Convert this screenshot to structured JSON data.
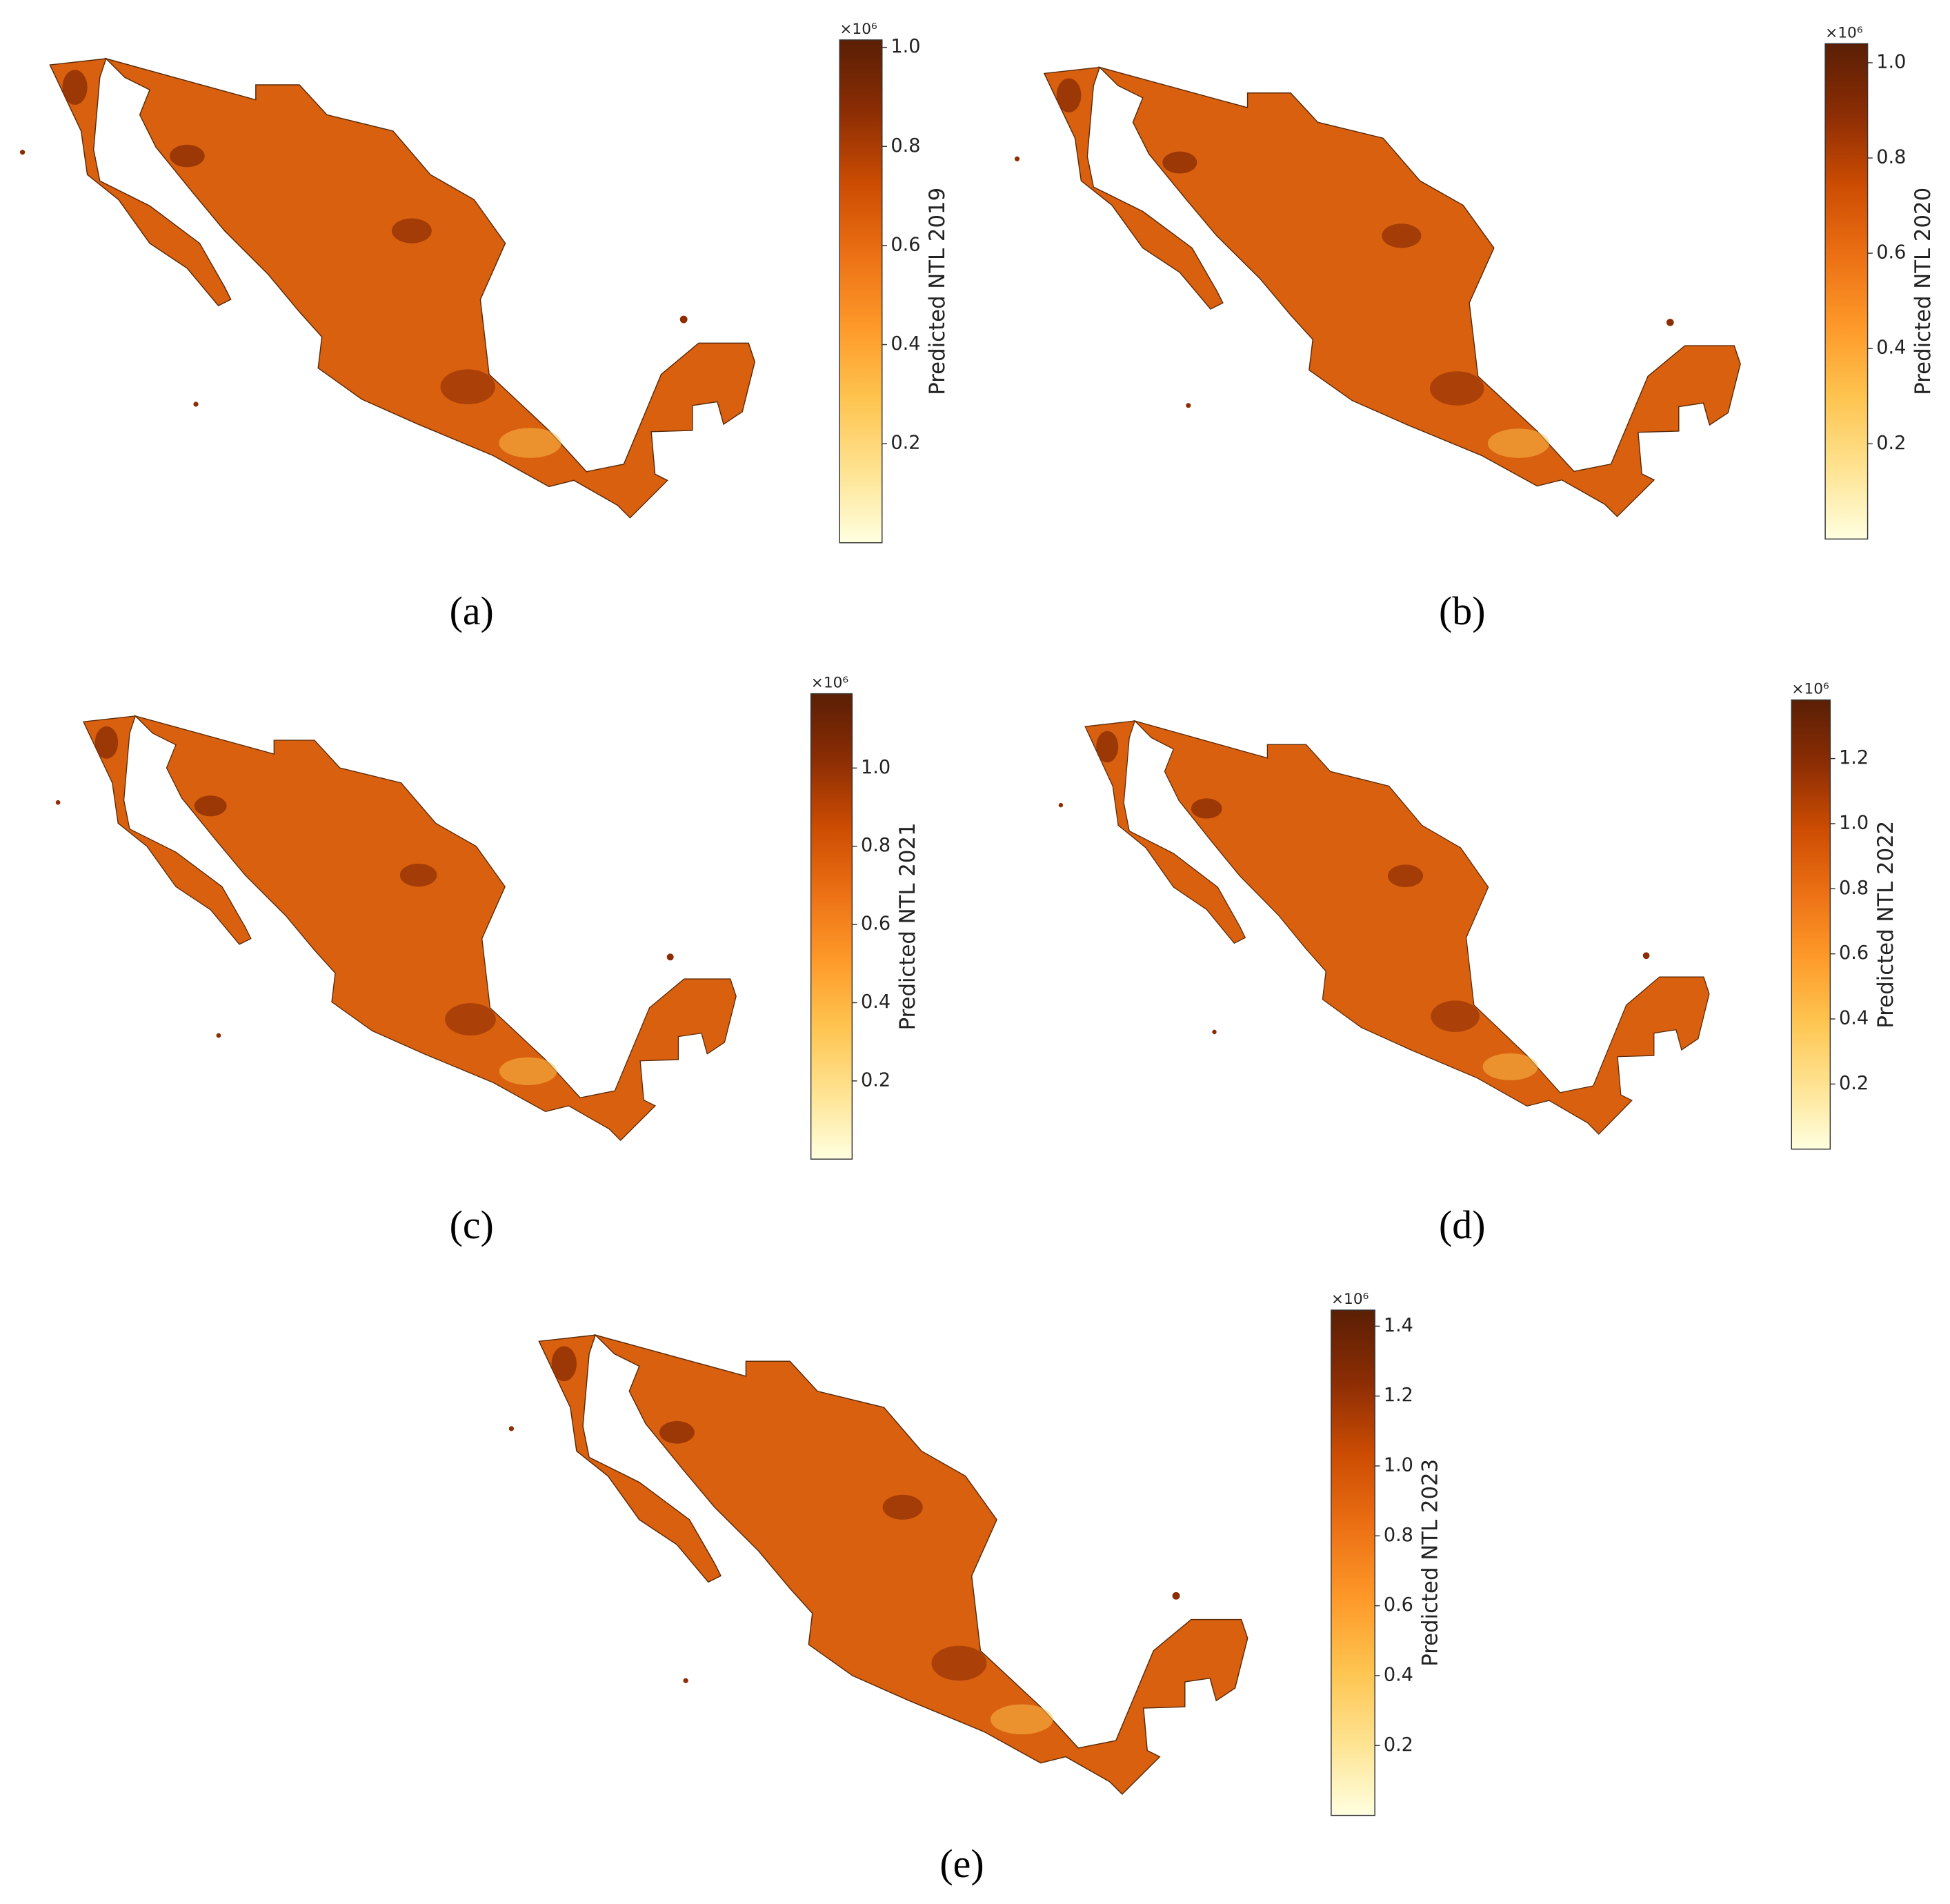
{
  "colormap": [
    "#ffffe0",
    "#fee391",
    "#fec44f",
    "#fe9929",
    "#ec7014",
    "#cc4c02",
    "#8c2d04",
    "#5a1f05"
  ],
  "panels": [
    {
      "caption": "(a)",
      "colorbar": {
        "label": "Predicted NTL 2019",
        "multiplier": "×10⁶",
        "lim": [
          0,
          1.015
        ],
        "ticks": [
          0.2,
          0.4,
          0.6,
          0.8,
          {
            "value": 1,
            "label": "1.0"
          }
        ]
      }
    },
    {
      "caption": "(b)",
      "colorbar": {
        "label": "Predicted NTL 2020",
        "multiplier": "×10⁶",
        "lim": [
          0,
          1.04
        ],
        "ticks": [
          0.2,
          0.4,
          0.6,
          0.8,
          {
            "value": 1,
            "label": "1.0"
          }
        ]
      }
    },
    {
      "caption": "(c)",
      "colorbar": {
        "label": "Predicted NTL 2021",
        "multiplier": "×10⁶",
        "lim": [
          0,
          1.19
        ],
        "ticks": [
          0.2,
          0.4,
          0.6,
          0.8,
          {
            "value": 1,
            "label": "1.0"
          }
        ]
      }
    },
    {
      "caption": "(d)",
      "colorbar": {
        "label": "Predicted NTL 2022",
        "multiplier": "×10⁶",
        "lim": [
          0,
          1.38
        ],
        "ticks": [
          0.2,
          0.4,
          0.6,
          0.8,
          {
            "value": 1,
            "label": "1.0"
          },
          1.2
        ]
      }
    },
    {
      "caption": "(e)",
      "colorbar": {
        "label": "Predicted NTL 2023",
        "multiplier": "×10⁶",
        "lim": [
          0,
          1.446
        ],
        "ticks": [
          0.2,
          0.4,
          0.6,
          0.8,
          {
            "value": 1,
            "label": "1.0"
          },
          1.2,
          1.4
        ]
      }
    }
  ]
}
